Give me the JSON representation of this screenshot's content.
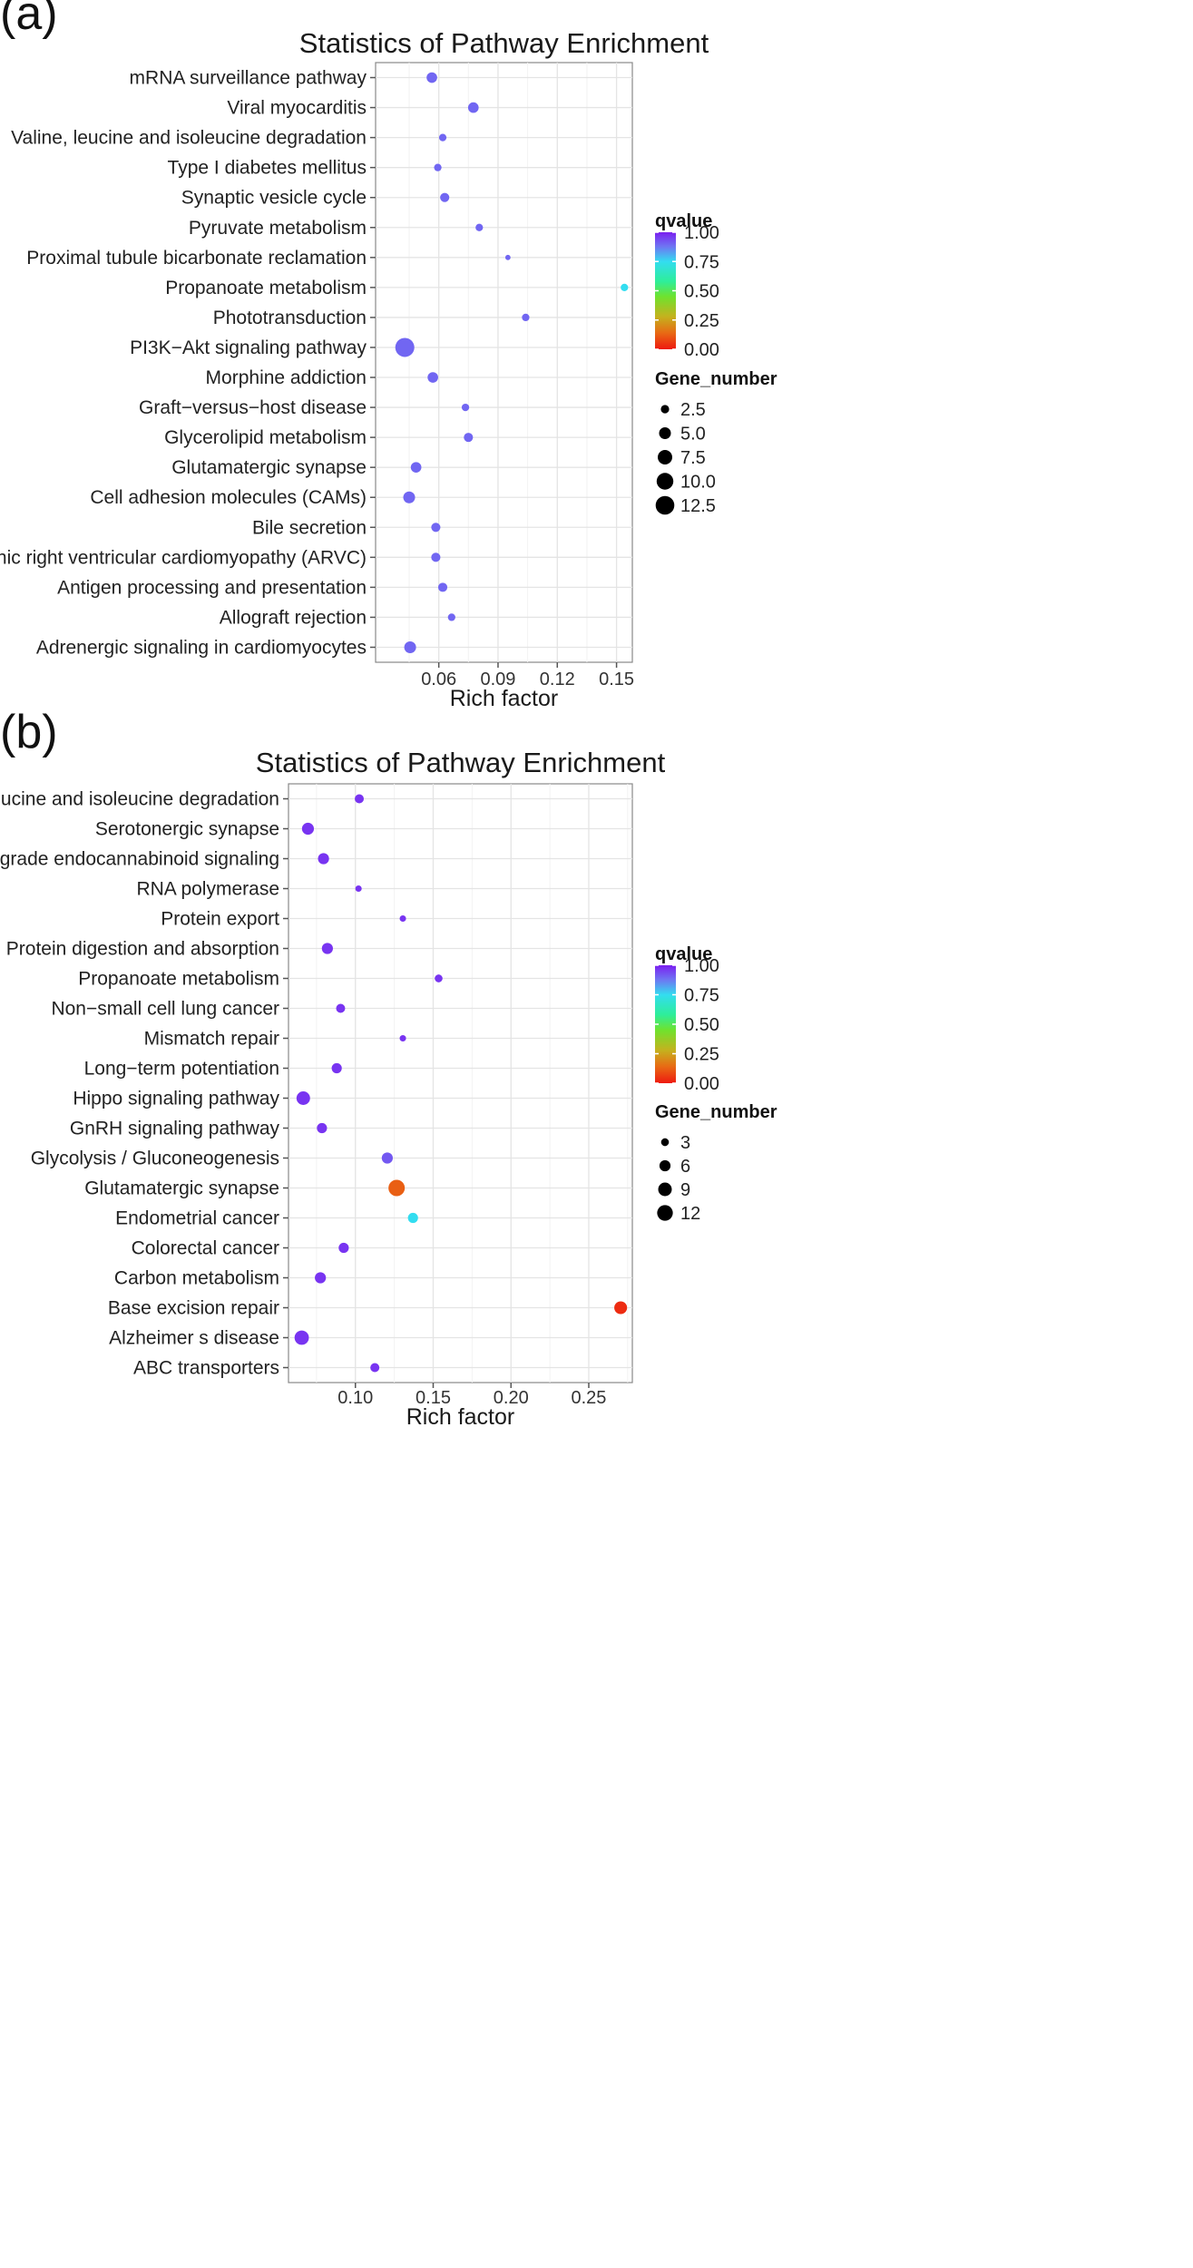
{
  "chart_data": [
    {
      "panel_label": "(a)",
      "type": "scatter",
      "title": "Statistics of Pathway Enrichment",
      "xlabel": "Rich factor",
      "ylabel": "",
      "xlim": [
        0.028,
        0.158
      ],
      "xticks": [
        0.06,
        0.09,
        0.12,
        0.15
      ],
      "xtick_labels": [
        "0.06",
        "0.09",
        "0.12",
        "0.15"
      ],
      "categories": [
        "mRNA surveillance pathway",
        "Viral myocarditis",
        "Valine, leucine and isoleucine degradation",
        "Type I diabetes mellitus",
        "Synaptic vesicle cycle",
        "Pyruvate metabolism",
        "Proximal tubule bicarbonate reclamation",
        "Propanoate metabolism",
        "Phototransduction",
        "PI3K−Akt signaling pathway",
        "Morphine addiction",
        "Graft−versus−host disease",
        "Glycerolipid metabolism",
        "Glutamatergic synapse",
        "Cell adhesion molecules (CAMs)",
        "Bile secretion",
        "Arrhythmogenic right ventricular cardiomyopathy (ARVC)",
        "Antigen processing and presentation",
        "Allograft rejection",
        "Adrenergic signaling in cardiomyocytes"
      ],
      "rich_factor": [
        0.0565,
        0.0775,
        0.062,
        0.0595,
        0.063,
        0.0805,
        0.095,
        0.154,
        0.104,
        0.0428,
        0.057,
        0.0735,
        0.075,
        0.0485,
        0.045,
        0.0585,
        0.0585,
        0.062,
        0.0665,
        0.0455
      ],
      "qvalue": [
        0.9,
        0.9,
        0.9,
        0.9,
        0.9,
        0.9,
        0.9,
        0.75,
        0.9,
        0.9,
        0.9,
        0.9,
        0.9,
        0.9,
        0.9,
        0.9,
        0.9,
        0.9,
        0.9,
        0.9
      ],
      "gene_number": [
        4,
        4,
        2,
        2,
        3,
        2,
        1,
        2,
        2,
        13,
        4,
        2,
        3,
        4,
        5,
        3,
        3,
        3,
        2,
        5
      ],
      "legend": {
        "color_title": "qvalue",
        "color_ticks": [
          1.0,
          0.75,
          0.5,
          0.25,
          0.0
        ],
        "color_tick_labels": [
          "1.00",
          "0.75",
          "0.50",
          "0.25",
          "0.00"
        ],
        "size_title": "Gene_number",
        "size_values": [
          2.5,
          5.0,
          7.5,
          10.0,
          12.5
        ],
        "size_labels": [
          "2.5",
          "5.0",
          "7.5",
          "10.0",
          "12.5"
        ],
        "size_max_value": 13
      }
    },
    {
      "panel_label": "(b)",
      "type": "scatter",
      "title": "Statistics of Pathway Enrichment",
      "xlabel": "Rich factor",
      "ylabel": "",
      "xlim": [
        0.057,
        0.278
      ],
      "xticks": [
        0.1,
        0.15,
        0.2,
        0.25
      ],
      "xtick_labels": [
        "0.10",
        "0.15",
        "0.20",
        "0.25"
      ],
      "categories": [
        "Valine, leucine and isoleucine degradation",
        "Serotonergic synapse",
        "Retrograde endocannabinoid signaling",
        "RNA polymerase",
        "Protein export",
        "Protein digestion and absorption",
        "Propanoate metabolism",
        "Non−small cell lung cancer",
        "Mismatch repair",
        "Long−term potentiation",
        "Hippo signaling pathway",
        "GnRH signaling pathway",
        "Glycolysis / Gluconeogenesis",
        "Glutamatergic synapse",
        "Endometrial cancer",
        "Colorectal cancer",
        "Carbon metabolism",
        "Base excision repair",
        "Alzheimer s disease",
        "ABC transporters"
      ],
      "rich_factor": [
        0.1025,
        0.0695,
        0.0795,
        0.102,
        0.1305,
        0.082,
        0.1535,
        0.0905,
        0.1305,
        0.088,
        0.0665,
        0.0785,
        0.1205,
        0.1265,
        0.137,
        0.0925,
        0.0775,
        0.2705,
        0.0655,
        0.1125
      ],
      "qvalue": [
        0.97,
        0.97,
        0.97,
        0.97,
        0.97,
        0.97,
        0.97,
        0.97,
        0.97,
        0.97,
        0.97,
        0.97,
        0.92,
        0.12,
        0.75,
        0.97,
        0.97,
        0.03,
        0.97,
        0.97
      ],
      "gene_number": [
        4,
        7,
        6,
        2,
        2,
        6,
        3,
        4,
        2,
        5,
        9,
        5,
        6,
        13,
        5,
        5,
        6,
        8,
        10,
        4
      ],
      "legend": {
        "color_title": "qvalue",
        "color_ticks": [
          1.0,
          0.75,
          0.5,
          0.25,
          0.0
        ],
        "color_tick_labels": [
          "1.00",
          "0.75",
          "0.50",
          "0.25",
          "0.00"
        ],
        "size_title": "Gene_number",
        "size_values": [
          3,
          6,
          9,
          12
        ],
        "size_labels": [
          "3",
          "6",
          "9",
          "12"
        ],
        "size_max_value": 13
      }
    }
  ]
}
